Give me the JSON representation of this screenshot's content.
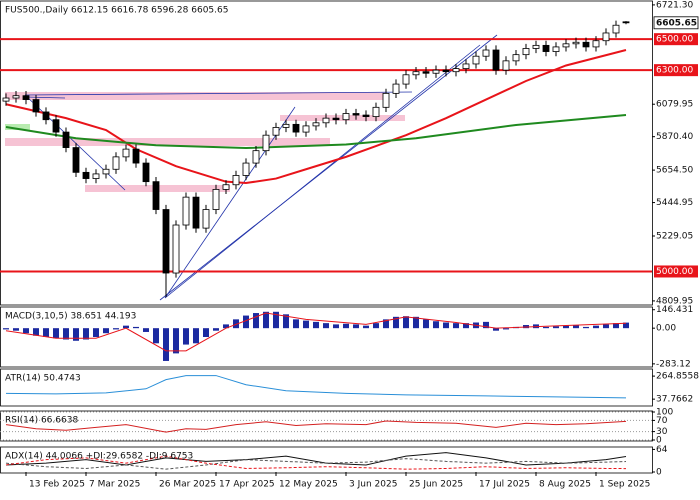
{
  "chart_data": [
    {
      "type": "candlestick",
      "title": "FUS500.,Daily  6612.15 6616.78 6596.28 6605.65",
      "categories": [
        null,
        null,
        "13 Feb 2025",
        null,
        null,
        null,
        null,
        null,
        "7 Mar 2025",
        null,
        null,
        null,
        null,
        null,
        null,
        "26 Mar 2025",
        null,
        null,
        null,
        null,
        null,
        "17 Apr 2025",
        null,
        null,
        null,
        null,
        null,
        "12 May 2025",
        null,
        null,
        null,
        null,
        null,
        null,
        "3 Jun 2025",
        null,
        null,
        null,
        null,
        null,
        "25 Jun 2025",
        null,
        null,
        null,
        null,
        null,
        null,
        "17 Jul 2025",
        null,
        null,
        null,
        null,
        null,
        "8 Aug 2025",
        null,
        null,
        null,
        null,
        null,
        "1 Sep 2025",
        null,
        null,
        null
      ],
      "open": [
        6100,
        6120,
        6135,
        6110,
        6030,
        5980,
        5900,
        5800,
        5640,
        5600,
        5630,
        5660,
        5740,
        5790,
        5700,
        5580,
        5400,
        4990,
        5300,
        5480,
        5280,
        5400,
        5530,
        5560,
        5620,
        5700,
        5780,
        5880,
        5930,
        5950,
        5900,
        5940,
        5960,
        5990,
        5980,
        6020,
        6010,
        6000,
        6060,
        6150,
        6210,
        6270,
        6290,
        6280,
        6300,
        6290,
        6310,
        6340,
        6390,
        6430,
        6300,
        6360,
        6400,
        6440,
        6460,
        6420,
        6450,
        6470,
        6480,
        6450,
        6490,
        6540,
        6612.15
      ],
      "high": [
        6150,
        6165,
        6165,
        6140,
        6060,
        6010,
        5930,
        5830,
        5670,
        5660,
        5690,
        5770,
        5820,
        5820,
        5730,
        5610,
        5430,
        5330,
        5510,
        5510,
        5430,
        5560,
        5590,
        5650,
        5730,
        5810,
        5910,
        5960,
        5980,
        5980,
        5970,
        5990,
        6020,
        6020,
        6050,
        6050,
        6040,
        6090,
        6180,
        6240,
        6300,
        6320,
        6320,
        6330,
        6330,
        6340,
        6370,
        6420,
        6460,
        6460,
        6390,
        6430,
        6470,
        6490,
        6490,
        6480,
        6500,
        6510,
        6510,
        6520,
        6570,
        6620,
        6616.78
      ],
      "low": [
        6070,
        6090,
        6080,
        6000,
        5950,
        5870,
        5770,
        5610,
        5570,
        5570,
        5600,
        5630,
        5710,
        5670,
        5550,
        5370,
        4835,
        4960,
        5270,
        5250,
        5250,
        5370,
        5500,
        5530,
        5590,
        5670,
        5750,
        5850,
        5900,
        5870,
        5870,
        5910,
        5930,
        5950,
        5950,
        5980,
        5970,
        5970,
        6030,
        6120,
        6180,
        6240,
        6250,
        6250,
        6260,
        6260,
        6280,
        6310,
        6360,
        6270,
        6270,
        6330,
        6370,
        6410,
        6390,
        6390,
        6420,
        6440,
        6420,
        6420,
        6460,
        6510,
        6596.28
      ],
      "close": [
        6120,
        6135,
        6110,
        6030,
        5980,
        5900,
        5800,
        5640,
        5600,
        5630,
        5660,
        5740,
        5790,
        5700,
        5580,
        5400,
        4990,
        5300,
        5480,
        5280,
        5400,
        5530,
        5560,
        5620,
        5700,
        5780,
        5880,
        5930,
        5950,
        5900,
        5940,
        5960,
        5990,
        5980,
        6020,
        6010,
        6000,
        6060,
        6150,
        6210,
        6270,
        6290,
        6280,
        6300,
        6290,
        6310,
        6340,
        6390,
        6430,
        6300,
        6360,
        6400,
        6440,
        6460,
        6420,
        6450,
        6470,
        6480,
        6450,
        6490,
        6540,
        6590,
        6605.65
      ],
      "series": [
        {
          "color": "#e8141a",
          "x": [
            0,
            2,
            6,
            10,
            13,
            17,
            22,
            24,
            27,
            30,
            34,
            37,
            40,
            44,
            48,
            52,
            56,
            62
          ],
          "values": [
            6080,
            6050,
            5990,
            5913,
            5790,
            5680,
            5580,
            5571,
            5600,
            5660,
            5740,
            5810,
            5880,
            5990,
            6110,
            6230,
            6330,
            6430
          ]
        },
        {
          "color": "#1f8a1f",
          "x": [
            0,
            7,
            15,
            24,
            34,
            41,
            51,
            62
          ],
          "values": [
            5933,
            5860,
            5815,
            5797,
            5820,
            5860,
            5946,
            6010
          ]
        }
      ],
      "levels": [
        {
          "value": 6500,
          "label": "6500.00"
        },
        {
          "value": 6300,
          "label": "6300.00"
        },
        {
          "value": 5000,
          "label": "5000.00"
        }
      ],
      "level_color": "#e8141a",
      "ylim": [
        4790,
        6740
      ],
      "yticks": [
        {
          "value": 6721.3,
          "label": "6721.30"
        },
        6079.95,
        {
          "value": 5870.4,
          "label": "5870.40"
        },
        {
          "value": 5654.5,
          "label": "5654.50"
        },
        5444.95,
        5229.05,
        4809.95
      ]
    },
    {
      "type": "macd",
      "title": "MACD(3,10,5) 38.651 44.193",
      "color": "#1c2aa0",
      "values": [
        -10,
        -20,
        -40,
        -60,
        -70,
        -80,
        -90,
        -100,
        -90,
        -70,
        -40,
        -10,
        20,
        10,
        -30,
        -120,
        -260,
        -200,
        -130,
        -120,
        -70,
        -20,
        30,
        70,
        100,
        120,
        130,
        130,
        110,
        70,
        60,
        50,
        40,
        30,
        35,
        30,
        20,
        40,
        70,
        90,
        95,
        90,
        70,
        55,
        45,
        40,
        40,
        45,
        50,
        -20,
        -10,
        10,
        25,
        30,
        10,
        15,
        20,
        25,
        10,
        20,
        30,
        40,
        44.193
      ],
      "series": [
        {
          "color": "#e8141a",
          "x": [
            0,
            5,
            9,
            12,
            16,
            18,
            22,
            26,
            30,
            36,
            40,
            45,
            49,
            54,
            62
          ],
          "values": [
            -20,
            -80,
            -80,
            0,
            -180,
            -180,
            0,
            120,
            70,
            30,
            90,
            45,
            0,
            15,
            38.651
          ]
        }
      ],
      "ylim": [
        -300,
        160
      ],
      "yticks": [
        146.431,
        {
          "value": 0,
          "label": "0.00"
        },
        -283.12
      ]
    },
    {
      "type": "line",
      "title": "ATR(14) 50.4743",
      "series": [
        {
          "color": "#2a8fd8",
          "x": [
            0,
            5,
            10,
            14,
            16,
            18,
            21,
            24,
            28,
            34,
            40,
            48,
            55,
            62
          ],
          "values": [
            95,
            90,
            100,
            140,
            230,
            270,
            270,
            180,
            120,
            95,
            80,
            70,
            60,
            50.4743
          ]
        }
      ],
      "ylim": [
        -20,
        325
      ],
      "yticks": [
        264.8558,
        37.7662
      ]
    },
    {
      "type": "line",
      "title": "RSI(14) 66.6638",
      "series": [
        {
          "color": "#d42020",
          "x": [
            0,
            3,
            6,
            9,
            12,
            15,
            16,
            18,
            20,
            23,
            26,
            29,
            32,
            36,
            38,
            41,
            45,
            49,
            52,
            55,
            58,
            62
          ],
          "values": [
            55,
            40,
            35,
            45,
            55,
            35,
            28,
            40,
            38,
            55,
            65,
            52,
            58,
            55,
            68,
            63,
            60,
            45,
            60,
            55,
            58,
            66.6638
          ]
        }
      ],
      "ylim": [
        0,
        100
      ],
      "yticks": [
        100,
        70,
        30,
        0
      ],
      "grid": true
    },
    {
      "type": "line",
      "title": "ADX(14) 44.0066 +DI:29.6582 -DI:9.6753",
      "series": [
        {
          "color": "#111111",
          "x": [
            0,
            4,
            8,
            12,
            16,
            20,
            24,
            28,
            32,
            36,
            40,
            44,
            48,
            52,
            56,
            60,
            62
          ],
          "values": [
            20,
            25,
            35,
            20,
            40,
            30,
            35,
            45,
            25,
            20,
            45,
            55,
            40,
            20,
            25,
            35,
            44.0066
          ]
        },
        {
          "color": "#555555",
          "dashed": true,
          "x": [
            0,
            4,
            8,
            12,
            16,
            20,
            24,
            28,
            32,
            36,
            40,
            44,
            48,
            52,
            56,
            60,
            62
          ],
          "values": [
            25,
            15,
            10,
            20,
            8,
            20,
            35,
            30,
            25,
            28,
            38,
            30,
            25,
            30,
            25,
            28,
            29.6582
          ]
        },
        {
          "color": "#e8141a",
          "dashed": true,
          "x": [
            0,
            4,
            8,
            12,
            16,
            20,
            24,
            28,
            32,
            36,
            40,
            44,
            48,
            52,
            56,
            60,
            62
          ],
          "values": [
            20,
            35,
            40,
            25,
            45,
            25,
            10,
            12,
            15,
            12,
            8,
            10,
            15,
            10,
            12,
            10,
            9.6753
          ]
        }
      ],
      "ylim": [
        0,
        68
      ],
      "yticks": [
        64,
        0
      ]
    }
  ]
}
